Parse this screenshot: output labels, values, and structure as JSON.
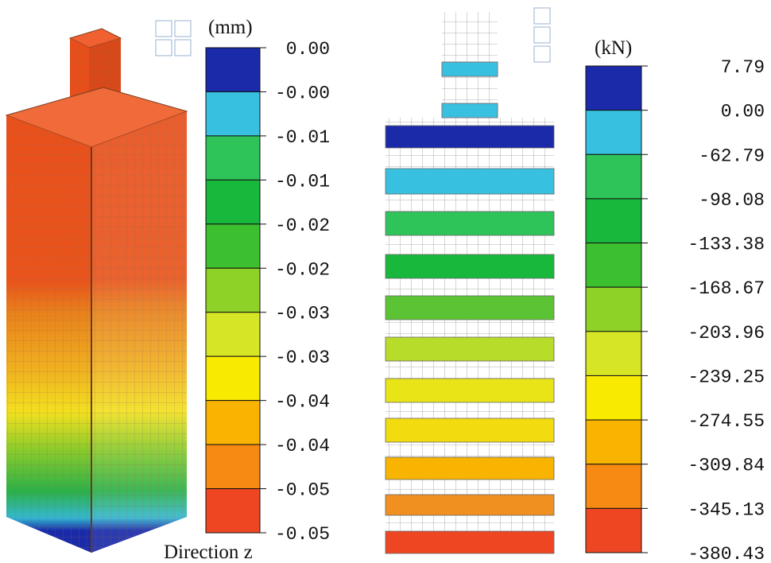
{
  "left_legend": {
    "unit": "(mm)",
    "caption": "Direction z",
    "labels": [
      "0.00",
      "-0.00",
      "-0.01",
      "-0.01",
      "-0.02",
      "-0.02",
      "-0.03",
      "-0.03",
      "-0.04",
      "-0.04",
      "-0.05",
      "-0.05"
    ],
    "colors": [
      "#1a2aa8",
      "#38c0e0",
      "#2ec45a",
      "#18b83c",
      "#3cc030",
      "#8ed228",
      "#d6e626",
      "#f8ea00",
      "#f8b400",
      "#f68a12",
      "#ee4622"
    ]
  },
  "right_legend": {
    "unit": "(kN)",
    "labels": [
      "7.79",
      "0.00",
      "-62.79",
      "-98.08",
      "-133.38",
      "-168.67",
      "-203.96",
      "-239.25",
      "-274.55",
      "-309.84",
      "-345.13",
      "-380.43"
    ],
    "colors": [
      "#1a2aa8",
      "#38c0e0",
      "#2ec45a",
      "#18b83c",
      "#3cc030",
      "#8ed228",
      "#d6e626",
      "#f8ea00",
      "#f8b400",
      "#f68a12",
      "#ee4622"
    ]
  }
}
